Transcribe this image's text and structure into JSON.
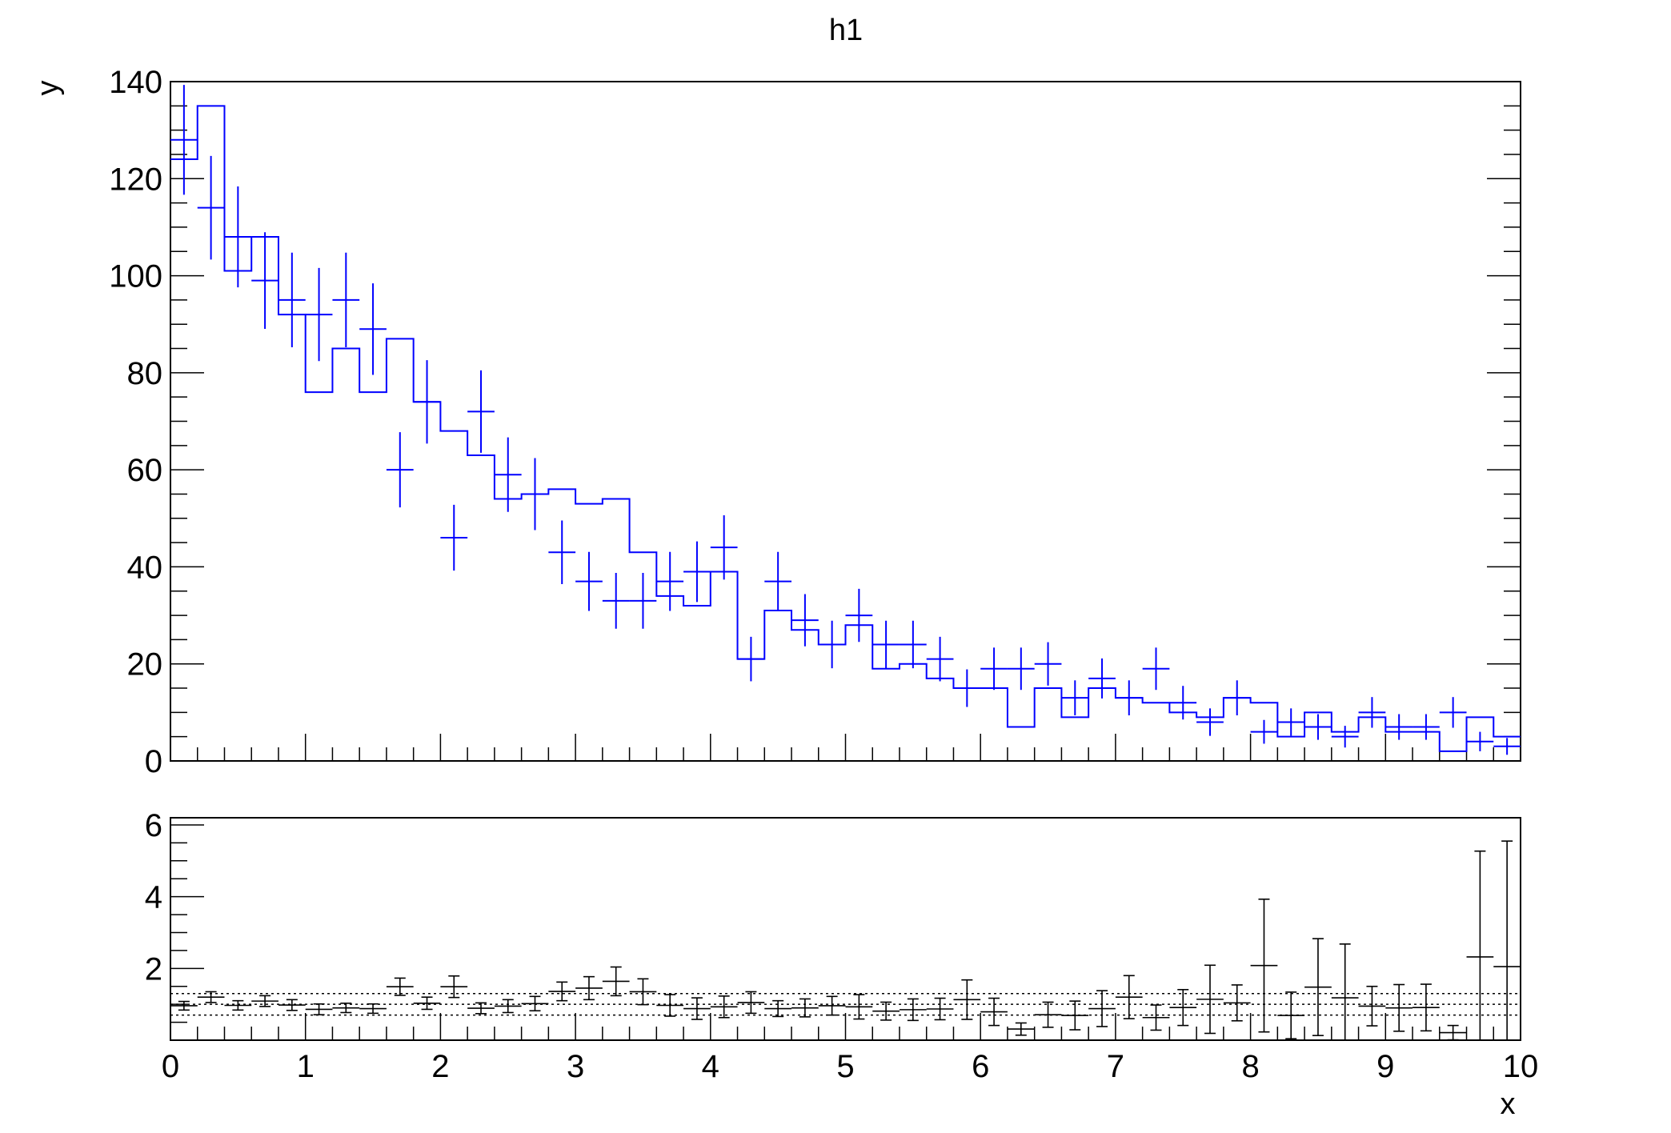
{
  "chart_data": [
    {
      "type": "histogram",
      "title": "h1",
      "ylabel": "y",
      "xlim": [
        0,
        10
      ],
      "ylim": [
        0,
        140
      ],
      "bin_edges_x": [
        0,
        10
      ],
      "bin_count": 50,
      "series": [
        {
          "style": "step",
          "color": "#0000ff",
          "values": [
            124,
            135,
            101,
            108,
            92,
            76,
            85,
            76,
            87,
            74,
            68,
            63,
            54,
            55,
            56,
            53,
            54,
            43,
            34,
            32,
            39,
            21,
            31,
            27,
            24,
            28,
            19,
            20,
            17,
            15,
            15,
            7,
            15,
            9,
            15,
            13,
            12,
            10,
            9,
            13,
            12,
            5,
            10,
            6,
            9,
            6,
            6,
            2,
            9,
            5
          ]
        },
        {
          "style": "error-cross",
          "color": "#0000ff",
          "values": [
            128,
            114,
            108,
            99,
            95,
            92,
            95,
            89,
            60,
            74,
            46,
            72,
            59,
            55,
            43,
            37,
            33,
            33,
            37,
            39,
            44,
            21,
            37,
            29,
            24,
            30,
            24,
            24,
            21,
            15,
            19,
            19,
            20,
            13,
            17,
            13,
            19,
            12,
            8,
            13,
            6,
            8,
            7,
            5,
            10,
            7,
            7,
            10,
            4,
            3
          ]
        }
      ],
      "yticks": [
        "0",
        "20",
        "40",
        "60",
        "80",
        "100",
        "120",
        "140"
      ]
    },
    {
      "type": "ratio",
      "xlabel": "x",
      "xlim": [
        0,
        10
      ],
      "ylim": [
        0,
        6.2
      ],
      "reference_lines": [
        0.7,
        1.0,
        1.3
      ],
      "color": "#000000",
      "values": [
        0.96,
        1.2,
        0.97,
        1.09,
        0.98,
        0.86,
        0.9,
        0.88,
        1.49,
        1.03,
        1.49,
        0.89,
        0.95,
        1.02,
        1.36,
        1.45,
        1.64,
        1.35,
        0.97,
        0.88,
        0.93,
        1.05,
        0.88,
        0.9,
        0.96,
        0.93,
        0.81,
        0.85,
        0.87,
        1.13,
        0.79,
        0.31,
        0.71,
        0.69,
        0.88,
        1.2,
        0.63,
        0.91,
        1.14,
        1.04,
        2.08,
        0.69,
        1.48,
        1.18,
        0.95,
        0.9,
        0.91,
        0.21,
        2.32,
        2.05
      ],
      "errors": [
        0.12,
        0.15,
        0.13,
        0.15,
        0.15,
        0.15,
        0.13,
        0.13,
        0.24,
        0.17,
        0.3,
        0.15,
        0.18,
        0.2,
        0.26,
        0.32,
        0.4,
        0.36,
        0.3,
        0.3,
        0.3,
        0.3,
        0.22,
        0.25,
        0.26,
        0.34,
        0.25,
        0.3,
        0.3,
        0.55,
        0.38,
        0.17,
        0.35,
        0.4,
        0.5,
        0.6,
        0.35,
        0.5,
        0.95,
        0.5,
        1.85,
        0.65,
        1.35,
        1.5,
        0.55,
        0.65,
        0.65,
        0.2,
        2.95,
        3.5
      ],
      "yticks": [
        "2",
        "4",
        "6"
      ],
      "xticks": [
        "0",
        "1",
        "2",
        "3",
        "4",
        "5",
        "6",
        "7",
        "8",
        "9",
        "10"
      ]
    }
  ]
}
